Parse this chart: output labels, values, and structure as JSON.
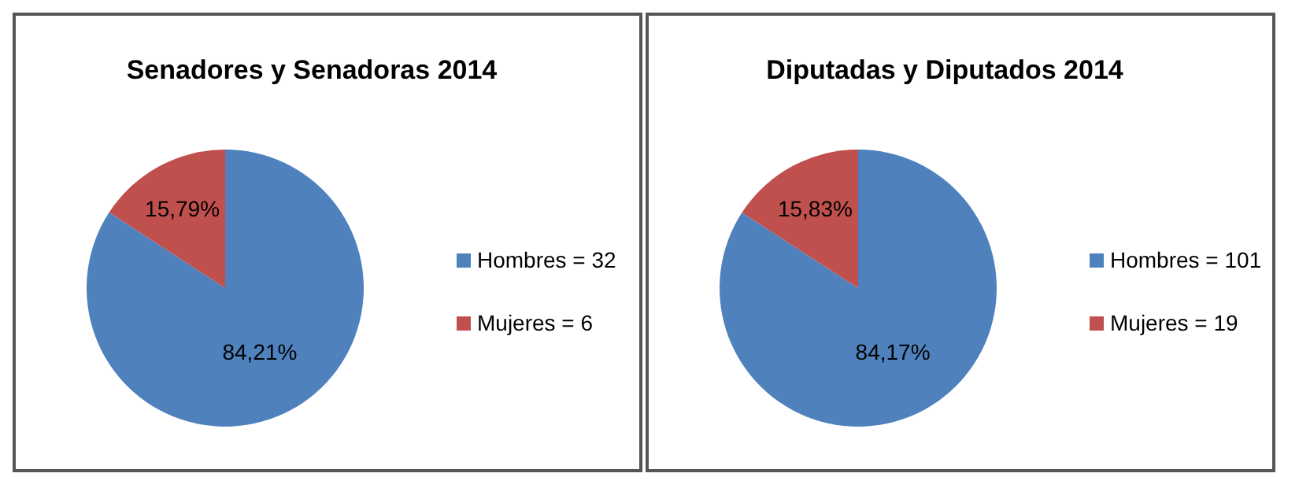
{
  "chart_data": [
    {
      "type": "pie",
      "title": "Senadores y Senadoras  2014",
      "categories": [
        "Hombres = 32",
        "Mujeres = 6"
      ],
      "values": [
        84.21,
        15.79
      ],
      "colors": [
        "#4f81bd",
        "#c0504d"
      ],
      "value_labels": [
        "84,21%",
        "15,79%"
      ],
      "legend": "right"
    },
    {
      "type": "pie",
      "title": "Diputadas y Diputados 2014",
      "categories": [
        "Hombres = 101",
        "Mujeres = 19"
      ],
      "values": [
        84.17,
        15.83
      ],
      "colors": [
        "#4f81bd",
        "#c0504d"
      ],
      "value_labels": [
        "84,17%",
        "15,83%"
      ],
      "legend": "right"
    }
  ]
}
